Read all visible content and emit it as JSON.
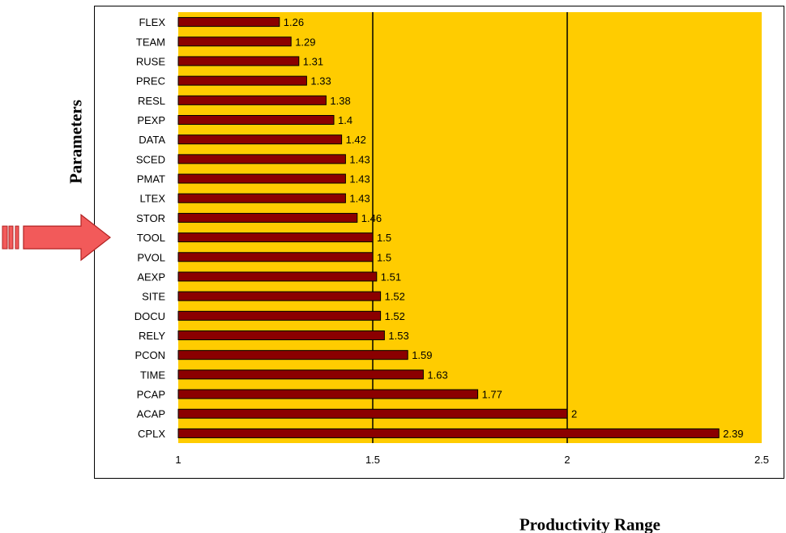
{
  "chart_data": {
    "type": "bar",
    "orientation": "horizontal",
    "categories": [
      "FLEX",
      "TEAM",
      "RUSE",
      "PREC",
      "RESL",
      "PEXP",
      "DATA",
      "SCED",
      "PMAT",
      "LTEX",
      "STOR",
      "TOOL",
      "PVOL",
      "AEXP",
      "SITE",
      "DOCU",
      "RELY",
      "PCON",
      "TIME",
      "PCAP",
      "ACAP",
      "CPLX"
    ],
    "values": [
      1.26,
      1.29,
      1.31,
      1.33,
      1.38,
      1.4,
      1.42,
      1.43,
      1.43,
      1.43,
      1.46,
      1.5,
      1.5,
      1.51,
      1.52,
      1.52,
      1.53,
      1.59,
      1.63,
      1.77,
      2,
      2.39
    ],
    "value_labels": [
      "1.26",
      "1.29",
      "1.31",
      "1.33",
      "1.38",
      "1.4",
      "1.42",
      "1.43",
      "1.43",
      "1.43",
      "1.46",
      "1.5",
      "1.5",
      "1.51",
      "1.52",
      "1.52",
      "1.53",
      "1.59",
      "1.63",
      "1.77",
      "2",
      "2.39"
    ],
    "title": "",
    "xlabel": "Productivity Range",
    "ylabel": "Parameters",
    "xlim": [
      1,
      2.5
    ],
    "xticks": [
      1,
      1.5,
      2,
      2.5
    ],
    "xtick_labels": [
      "1",
      "1.5",
      "2",
      "2.5"
    ],
    "gridlines": [
      1.5,
      2
    ],
    "grid": true,
    "legend": false,
    "annotation": {
      "type": "arrow",
      "points_to": "TOOL"
    }
  },
  "colors": {
    "plot_background": "#ffcc00",
    "bar_fill": "#8b0000",
    "bar_stroke": "#000000",
    "gridline": "#000000",
    "arrow_fill": "#f25a5a",
    "arrow_stroke": "#b22222"
  }
}
